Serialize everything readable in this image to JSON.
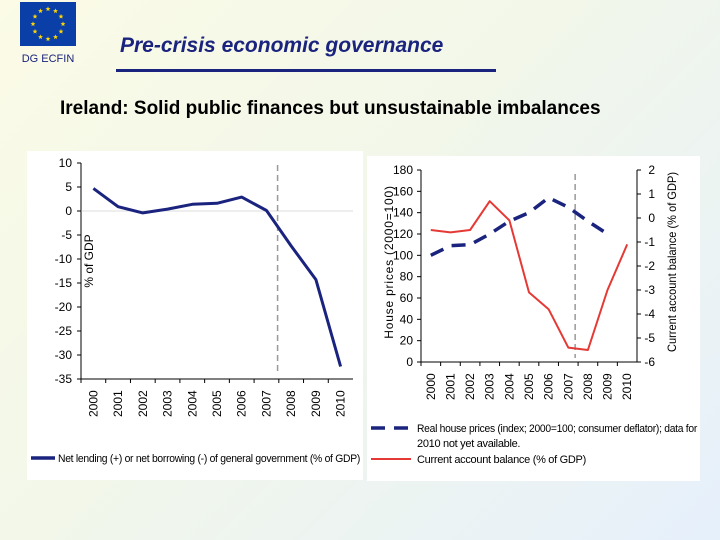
{
  "header": {
    "org_label": "DG ECFIN",
    "title": "Pre-crisis economic governance",
    "subtitle": "Ireland: Solid public finances but unsustainable imbalances"
  },
  "colors": {
    "title": "#1a237e",
    "navy_series": "#1a237e",
    "red_series": "#e53935",
    "marker_line": "#999999"
  },
  "icons": {
    "logo": "eu-flag-icon"
  },
  "chart_data": [
    {
      "type": "line",
      "title": "",
      "xlabel": "",
      "ylabel": "% of GDP",
      "ylim": [
        -35,
        10
      ],
      "yticks": [
        10,
        5,
        0,
        -5,
        -10,
        -15,
        -20,
        -25,
        -30,
        -35
      ],
      "categories": [
        "2000",
        "2001",
        "2002",
        "2003",
        "2004",
        "2005",
        "2006",
        "2007",
        "2008",
        "2009",
        "2010"
      ],
      "series": [
        {
          "name": "Net lending (+) or net borrowing (-) of general government (% of GDP)",
          "values": [
            4.7,
            0.9,
            -0.4,
            0.4,
            1.4,
            1.6,
            2.9,
            0.1,
            -7.3,
            -14.3,
            -32.4
          ],
          "color": "#1a237e",
          "style": "solid"
        }
      ],
      "marker_line_x": "2007",
      "grid": false,
      "legend": "bottom"
    },
    {
      "type": "line",
      "title": "",
      "xlabel": "",
      "ylabel_left": "House prices (2000=100)",
      "ylabel_right": "Current account balance (% of GDP)",
      "ylim_left": [
        0,
        180
      ],
      "yticks_left": [
        180,
        160,
        140,
        120,
        100,
        80,
        60,
        40,
        20,
        0
      ],
      "ylim_right": [
        -6,
        2
      ],
      "yticks_right": [
        2,
        1,
        0,
        -1,
        -2,
        -3,
        -4,
        -5,
        -6
      ],
      "categories": [
        "2000",
        "2001",
        "2002",
        "2003",
        "2004",
        "2005",
        "2006",
        "2007",
        "2008",
        "2009",
        "2010"
      ],
      "series": [
        {
          "name": "Real house prices (index; 2000=100; consumer deflator); data for 2010 not yet available.",
          "axis": "left",
          "values": [
            100,
            109,
            110,
            120,
            132,
            140,
            154,
            145,
            132,
            120,
            null
          ],
          "color": "#1a237e",
          "style": "dashed"
        },
        {
          "name": "Current account balance (% of GDP)",
          "axis": "right",
          "values": [
            -0.5,
            -0.6,
            -0.5,
            0.7,
            -0.1,
            -3.1,
            -3.8,
            -5.4,
            -5.5,
            -3.0,
            -1.1
          ],
          "color": "#e53935",
          "style": "solid"
        }
      ],
      "marker_line_x": "2007",
      "grid": false,
      "legend": "bottom"
    }
  ]
}
